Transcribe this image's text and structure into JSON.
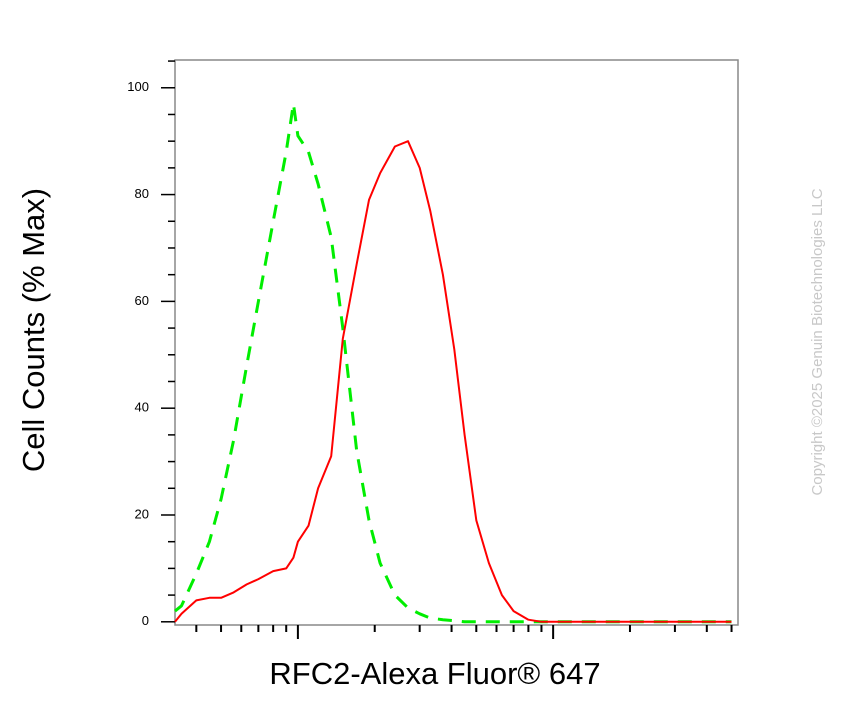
{
  "chart_data": {
    "type": "line",
    "x_label": "RFC2-Alexa Fluor® 647",
    "y_label": "Cell Counts (% Max)",
    "watermark": "Copyright ©2025 Genuin Biotechnologies LLC",
    "xscale": "log",
    "xlim": [
      330,
      53000
    ],
    "xticks": [
      1000,
      10000
    ],
    "xminorticks": [
      400,
      500,
      600,
      700,
      800,
      900,
      2000,
      3000,
      4000,
      5000,
      6000,
      7000,
      8000,
      9000,
      20000,
      30000,
      40000,
      50000
    ],
    "ylim": [
      -0.6,
      105.2
    ],
    "yticks": [
      0,
      20,
      40,
      60,
      80,
      100
    ],
    "yminorticks": [
      5,
      10,
      15,
      25,
      30,
      35,
      45,
      50,
      55,
      65,
      70,
      75,
      85,
      90,
      95,
      105
    ],
    "x": [
      330,
      350,
      400,
      450,
      500,
      560,
      630,
      700,
      800,
      900,
      960,
      1000,
      1100,
      1200,
      1350,
      1500,
      1700,
      1900,
      2100,
      2400,
      2700,
      3000,
      3300,
      3700,
      4100,
      4500,
      5000,
      5600,
      6300,
      7000,
      8000,
      9000,
      10000,
      12000,
      15000,
      20000,
      30000,
      50000
    ],
    "series": [
      {
        "color": "#00ee00",
        "dash": true,
        "values": [
          2,
          3,
          9,
          15,
          23,
          34,
          48,
          60,
          75,
          88,
          97,
          91,
          88,
          82,
          72,
          55,
          32,
          19,
          11,
          5,
          2.6,
          1.5,
          0.7,
          0.4,
          0.2,
          0,
          0,
          0,
          0,
          0,
          0,
          0,
          0,
          0,
          0,
          0,
          0,
          0
        ]
      },
      {
        "color": "#ff0000",
        "dash": false,
        "values": [
          0,
          1.5,
          4,
          4.5,
          4.5,
          5.5,
          7,
          8,
          9.5,
          10,
          12,
          15,
          18,
          25,
          31,
          53,
          67,
          79,
          84,
          89,
          90,
          85,
          77,
          65,
          51,
          35,
          19,
          11,
          5,
          2,
          0.4,
          0,
          0,
          0,
          0,
          0,
          0,
          0
        ]
      }
    ]
  }
}
